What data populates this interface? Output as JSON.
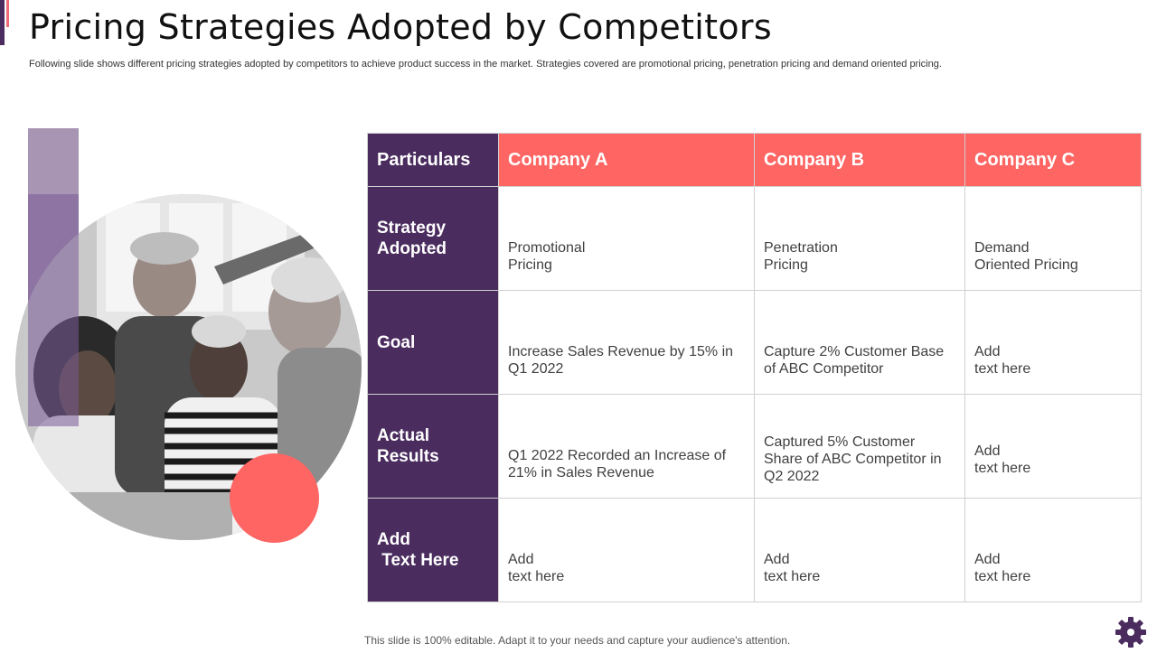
{
  "title": "Pricing Strategies  Adopted  by Competitors",
  "subtitle": "Following slide shows different pricing strategies adopted by competitors to achieve product success in the market. Strategies covered are promotional pricing, penetration pricing and demand oriented pricing.",
  "table": {
    "headers": [
      "Particulars",
      "Company A",
      "Company B",
      "Company C"
    ],
    "rows": [
      {
        "label": [
          "Strategy",
          "Adopted"
        ],
        "cells": [
          [
            "Promotional",
            "Pricing"
          ],
          [
            "Penetration",
            "Pricing"
          ],
          [
            "Demand",
            "Oriented Pricing"
          ]
        ]
      },
      {
        "label": [
          "Goal"
        ],
        "cells": [
          [
            "Increase  Sales Revenue  by 15% in",
            "Q1 2022"
          ],
          [
            "Capture 2% Customer Base",
            "of ABC Competitor"
          ],
          [
            "Add",
            "text here"
          ]
        ]
      },
      {
        "label": [
          "Actual",
          "Results"
        ],
        "cells": [
          [
            "Q1 2022 Recorded an Increase  of",
            "21%  in Sales Revenue"
          ],
          [
            "Captured 5% Customer",
            "Share of ABC Competitor in",
            "Q2 2022"
          ],
          [
            "Add",
            "text here"
          ]
        ]
      },
      {
        "label": [
          "Add",
          " Text Here"
        ],
        "cells": [
          [
            "Add",
            "text here"
          ],
          [
            "Add",
            "text here"
          ],
          [
            "Add",
            "text here"
          ]
        ]
      }
    ]
  },
  "footer": "This slide is 100% editable. Adapt it to your needs and capture your audience's attention.",
  "colors": {
    "purple": "#4a2c5e",
    "coral": "#fe6563",
    "lavender": "#a795b3"
  },
  "icons": {
    "corner": "gear-icon"
  }
}
